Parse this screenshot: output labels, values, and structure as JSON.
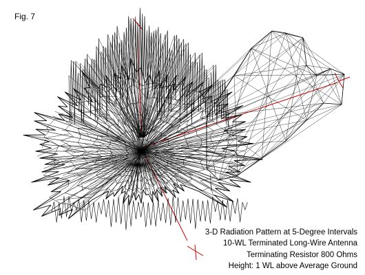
{
  "figure_label": "Fig. 7",
  "caption_lines": [
    "3-D Radiation Pattern at 5-Degree Intervals",
    "10-WL Terminated Long-Wire Antenna",
    "Terminating Resistor 800 Ohms",
    "Height: 1 WL above Average Ground"
  ],
  "colors": {
    "mesh": "#000000",
    "axes": "#cc0000",
    "background": "#ffffff"
  }
}
